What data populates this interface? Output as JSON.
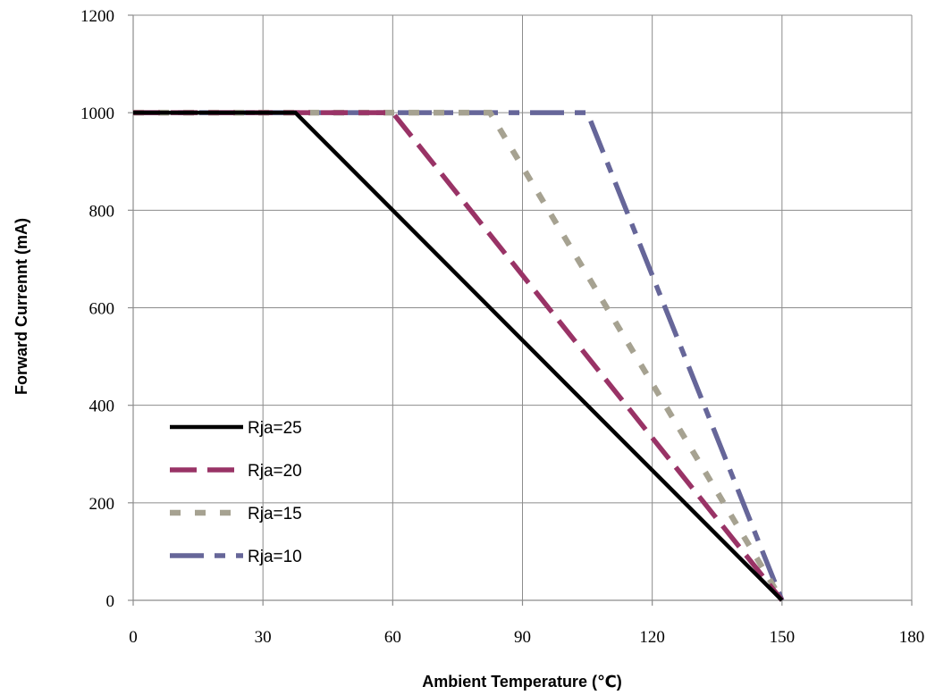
{
  "chart_data": {
    "type": "line",
    "title": "",
    "xlabel": "Ambient Temperature (℃)",
    "ylabel": "Forward  Currennt (mA)",
    "xlim": [
      0,
      180
    ],
    "ylim": [
      0,
      1200
    ],
    "xticks": [
      "0",
      "30",
      "60",
      "90",
      "120",
      "150",
      "180"
    ],
    "yticks": [
      "0",
      "200",
      "400",
      "600",
      "800",
      "1000",
      "1200"
    ],
    "grid": true,
    "legend_position": "bottom-left",
    "series": [
      {
        "name": "Rja=25",
        "color": "#000000",
        "dash": "solid",
        "x": [
          0,
          37.5,
          150
        ],
        "y": [
          1000,
          1000,
          0
        ]
      },
      {
        "name": "Rja=20",
        "color": "#993366",
        "dash": "long-dash",
        "x": [
          0,
          60,
          150
        ],
        "y": [
          1000,
          1000,
          0
        ]
      },
      {
        "name": "Rja=15",
        "color": "#a6a291",
        "dash": "short-dash",
        "x": [
          0,
          82.5,
          150
        ],
        "y": [
          1000,
          1000,
          0
        ]
      },
      {
        "name": "Rja=10",
        "color": "#666699",
        "dash": "dash-dot",
        "x": [
          0,
          105,
          150
        ],
        "y": [
          1000,
          1000,
          0
        ]
      }
    ]
  }
}
